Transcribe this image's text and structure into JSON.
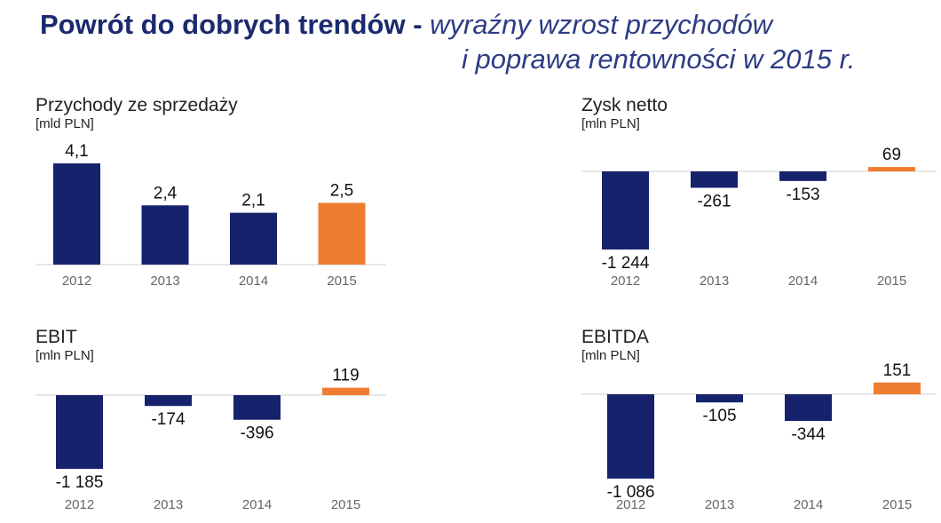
{
  "title": {
    "bold": "Powrót do dobrych trendów -",
    "italic_line1": "wyraźny wzrost przychodów",
    "italic_line2": "i poprawa rentowności w 2015 r."
  },
  "colors": {
    "navy": "#16226b",
    "orange": "#ee7d31",
    "axis": "#cfcfcf"
  },
  "chart_data": [
    {
      "id": "revenue",
      "type": "bar",
      "title": "Przychody ze sprzedaży",
      "unit": "[mld PLN]",
      "categories": [
        "2012",
        "2013",
        "2014",
        "2015"
      ],
      "values": [
        4.1,
        2.4,
        2.1,
        2.5
      ],
      "labels": [
        "4,1",
        "2,4",
        "2,1",
        "2,5"
      ],
      "highlight_last": true
    },
    {
      "id": "net-profit",
      "type": "bar",
      "title": "Zysk netto",
      "unit": "[mln PLN]",
      "categories": [
        "2012",
        "2013",
        "2014",
        "2015"
      ],
      "values": [
        -1244,
        -261,
        -153,
        69
      ],
      "labels": [
        "-1 244",
        "-261",
        "-153",
        "69"
      ],
      "highlight_last": true
    },
    {
      "id": "ebit",
      "type": "bar",
      "title": "EBIT",
      "unit": "[mln PLN]",
      "categories": [
        "2012",
        "2013",
        "2014",
        "2015"
      ],
      "values": [
        -1185,
        -174,
        -396,
        119
      ],
      "labels": [
        "-1 185",
        "-174",
        "-396",
        "119"
      ],
      "highlight_last": true
    },
    {
      "id": "ebitda",
      "type": "bar",
      "title": "EBITDA",
      "unit": "[mln PLN]",
      "categories": [
        "2012",
        "2013",
        "2014",
        "2015"
      ],
      "values": [
        -1086,
        -105,
        -344,
        151
      ],
      "labels": [
        "-1 086",
        "-105",
        "-344",
        "151"
      ],
      "highlight_last": true
    }
  ]
}
